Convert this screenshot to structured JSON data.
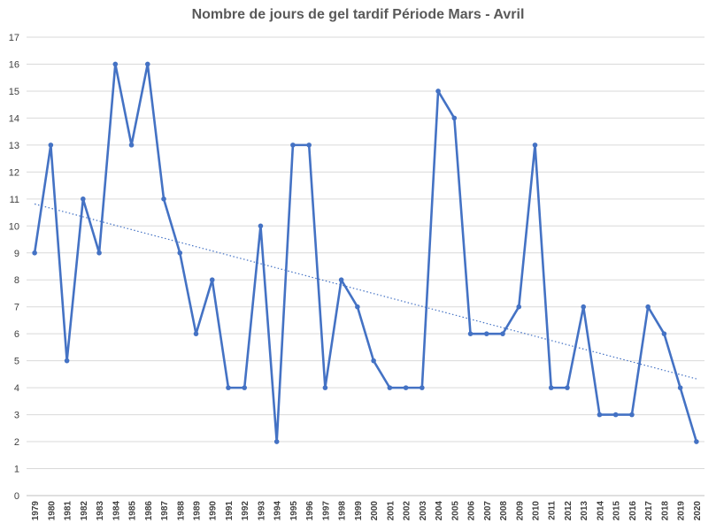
{
  "chart_data": {
    "type": "line",
    "title": "Nombre de jours de gel tardif Période Mars - Avril",
    "xlabel": "",
    "ylabel": "",
    "ylim": [
      0,
      17
    ],
    "grid": true,
    "legend": "none",
    "colors": {
      "series": "#4472C4",
      "trend": "#4472C4",
      "grid": "#d9d9d9",
      "axis": "#bfbfbf"
    },
    "categories": [
      "1979",
      "1980",
      "1981",
      "1982",
      "1983",
      "1984",
      "1985",
      "1986",
      "1987",
      "1988",
      "1989",
      "1990",
      "1991",
      "1992",
      "1993",
      "1994",
      "1995",
      "1996",
      "1997",
      "1998",
      "1999",
      "2000",
      "2001",
      "2002",
      "2003",
      "2004",
      "2005",
      "2006",
      "2007",
      "2008",
      "2009",
      "2010",
      "2011",
      "2012",
      "2013",
      "2014",
      "2015",
      "2016",
      "2017",
      "2018",
      "2019",
      "2020"
    ],
    "series": [
      {
        "values": [
          9,
          13,
          5,
          11,
          9,
          16,
          13,
          16,
          11,
          9,
          6,
          8,
          4,
          4,
          10,
          2,
          13,
          13,
          4,
          8,
          7,
          5,
          4,
          4,
          4,
          15,
          14,
          6,
          6,
          6,
          7,
          13,
          4,
          4,
          7,
          3,
          3,
          3,
          7,
          6,
          4,
          2
        ]
      }
    ],
    "trendline": {
      "type": "linear",
      "style": "dotted"
    },
    "yticks": [
      "0",
      "1",
      "2",
      "3",
      "4",
      "5",
      "6",
      "7",
      "8",
      "9",
      "10",
      "11",
      "12",
      "13",
      "14",
      "15",
      "16",
      "17"
    ]
  }
}
